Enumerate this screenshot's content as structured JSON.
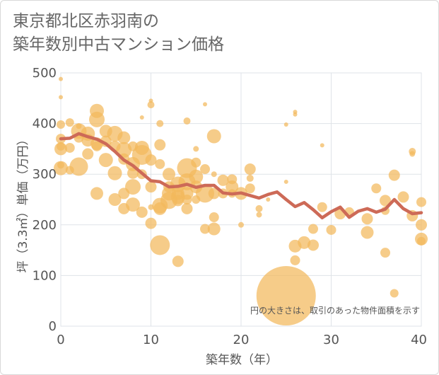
{
  "title_lines": [
    "東京都北区赤羽南の",
    "築年数別中古マンション価格"
  ],
  "note": "円の大きさは、取引のあった物件面積を示す",
  "colors": {
    "bubble": "#f3b95b",
    "line": "#cd6a57",
    "grid": "#dfe3e8"
  },
  "chart_data": {
    "type": "scatter",
    "xlabel": "築年数（年）",
    "ylabel": "坪（3.3㎡）単価（万円）",
    "xlim": [
      0,
      40
    ],
    "ylim": [
      0,
      500
    ],
    "x_ticks": [
      0,
      10,
      20,
      30,
      40
    ],
    "y_ticks": [
      0,
      100,
      200,
      300,
      400,
      500
    ],
    "grid": true,
    "scatter_points": [
      {
        "x": 0,
        "y": 488,
        "r": 3
      },
      {
        "x": 0,
        "y": 452,
        "r": 3
      },
      {
        "x": 0,
        "y": 398,
        "r": 6
      },
      {
        "x": 0,
        "y": 370,
        "r": 7
      },
      {
        "x": 0,
        "y": 355,
        "r": 6
      },
      {
        "x": 0,
        "y": 350,
        "r": 9
      },
      {
        "x": 0,
        "y": 312,
        "r": 10
      },
      {
        "x": 0,
        "y": 318,
        "r": 5
      },
      {
        "x": 1,
        "y": 402,
        "r": 6
      },
      {
        "x": 1,
        "y": 352,
        "r": 7
      },
      {
        "x": 1,
        "y": 308,
        "r": 6
      },
      {
        "x": 2,
        "y": 395,
        "r": 4
      },
      {
        "x": 2,
        "y": 385,
        "r": 11
      },
      {
        "x": 2,
        "y": 372,
        "r": 7
      },
      {
        "x": 2,
        "y": 315,
        "r": 13
      },
      {
        "x": 3,
        "y": 380,
        "r": 10
      },
      {
        "x": 3,
        "y": 367,
        "r": 9
      },
      {
        "x": 3,
        "y": 340,
        "r": 8
      },
      {
        "x": 4,
        "y": 425,
        "r": 10
      },
      {
        "x": 4,
        "y": 408,
        "r": 11
      },
      {
        "x": 4,
        "y": 360,
        "r": 9
      },
      {
        "x": 4,
        "y": 355,
        "r": 7
      },
      {
        "x": 4,
        "y": 262,
        "r": 9
      },
      {
        "x": 5,
        "y": 385,
        "r": 9
      },
      {
        "x": 5,
        "y": 365,
        "r": 8
      },
      {
        "x": 5,
        "y": 328,
        "r": 10
      },
      {
        "x": 6,
        "y": 380,
        "r": 11
      },
      {
        "x": 6,
        "y": 355,
        "r": 8
      },
      {
        "x": 6,
        "y": 302,
        "r": 10
      },
      {
        "x": 6,
        "y": 250,
        "r": 9
      },
      {
        "x": 7,
        "y": 372,
        "r": 9
      },
      {
        "x": 7,
        "y": 348,
        "r": 11
      },
      {
        "x": 7,
        "y": 330,
        "r": 8
      },
      {
        "x": 7,
        "y": 262,
        "r": 8
      },
      {
        "x": 7,
        "y": 232,
        "r": 8
      },
      {
        "x": 8,
        "y": 355,
        "r": 7
      },
      {
        "x": 8,
        "y": 320,
        "r": 10
      },
      {
        "x": 8,
        "y": 302,
        "r": 8
      },
      {
        "x": 8,
        "y": 275,
        "r": 11
      },
      {
        "x": 8,
        "y": 240,
        "r": 10
      },
      {
        "x": 9,
        "y": 412,
        "r": 3
      },
      {
        "x": 9,
        "y": 352,
        "r": 10
      },
      {
        "x": 9,
        "y": 338,
        "r": 14
      },
      {
        "x": 9,
        "y": 300,
        "r": 7
      },
      {
        "x": 9,
        "y": 225,
        "r": 8
      },
      {
        "x": 10,
        "y": 445,
        "r": 3
      },
      {
        "x": 10,
        "y": 437,
        "r": 5
      },
      {
        "x": 10,
        "y": 328,
        "r": 8
      },
      {
        "x": 10,
        "y": 275,
        "r": 8
      },
      {
        "x": 10,
        "y": 235,
        "r": 4
      },
      {
        "x": 10,
        "y": 203,
        "r": 8
      },
      {
        "x": 11,
        "y": 400,
        "r": 5
      },
      {
        "x": 11,
        "y": 358,
        "r": 8
      },
      {
        "x": 11,
        "y": 320,
        "r": 7
      },
      {
        "x": 11,
        "y": 232,
        "r": 9
      },
      {
        "x": 11,
        "y": 238,
        "r": 11
      },
      {
        "x": 11,
        "y": 160,
        "r": 14
      },
      {
        "x": 12,
        "y": 300,
        "r": 9
      },
      {
        "x": 12,
        "y": 275,
        "r": 8
      },
      {
        "x": 12,
        "y": 262,
        "r": 10
      },
      {
        "x": 12,
        "y": 248,
        "r": 12
      },
      {
        "x": 13,
        "y": 280,
        "r": 11
      },
      {
        "x": 13,
        "y": 262,
        "r": 9
      },
      {
        "x": 13,
        "y": 255,
        "r": 10
      },
      {
        "x": 13,
        "y": 248,
        "r": 8
      },
      {
        "x": 13,
        "y": 128,
        "r": 8
      },
      {
        "x": 14,
        "y": 405,
        "r": 5
      },
      {
        "x": 14,
        "y": 312,
        "r": 14
      },
      {
        "x": 14,
        "y": 285,
        "r": 12
      },
      {
        "x": 14,
        "y": 262,
        "r": 9
      },
      {
        "x": 14,
        "y": 250,
        "r": 7
      },
      {
        "x": 14,
        "y": 232,
        "r": 8
      },
      {
        "x": 15,
        "y": 350,
        "r": 4
      },
      {
        "x": 15,
        "y": 323,
        "r": 7
      },
      {
        "x": 15,
        "y": 295,
        "r": 10
      },
      {
        "x": 15,
        "y": 275,
        "r": 9
      },
      {
        "x": 15,
        "y": 250,
        "r": 6
      },
      {
        "x": 16,
        "y": 438,
        "r": 3
      },
      {
        "x": 16,
        "y": 310,
        "r": 7
      },
      {
        "x": 16,
        "y": 262,
        "r": 13
      },
      {
        "x": 16,
        "y": 192,
        "r": 7
      },
      {
        "x": 17,
        "y": 375,
        "r": 10
      },
      {
        "x": 17,
        "y": 300,
        "r": 4
      },
      {
        "x": 17,
        "y": 262,
        "r": 8
      },
      {
        "x": 17,
        "y": 215,
        "r": 7
      },
      {
        "x": 17,
        "y": 192,
        "r": 9
      },
      {
        "x": 18,
        "y": 288,
        "r": 8
      },
      {
        "x": 18,
        "y": 262,
        "r": 7
      },
      {
        "x": 19,
        "y": 290,
        "r": 7
      },
      {
        "x": 19,
        "y": 275,
        "r": 9
      },
      {
        "x": 19,
        "y": 262,
        "r": 6
      },
      {
        "x": 20,
        "y": 262,
        "r": 9
      },
      {
        "x": 20,
        "y": 200,
        "r": 4
      },
      {
        "x": 21,
        "y": 310,
        "r": 8
      },
      {
        "x": 21,
        "y": 292,
        "r": 5
      },
      {
        "x": 21,
        "y": 272,
        "r": 7
      },
      {
        "x": 22,
        "y": 232,
        "r": 5
      },
      {
        "x": 22,
        "y": 220,
        "r": 4
      },
      {
        "x": 23,
        "y": 250,
        "r": 3
      },
      {
        "x": 25,
        "y": 398,
        "r": 3
      },
      {
        "x": 25,
        "y": 285,
        "r": 3
      },
      {
        "x": 25,
        "y": 60,
        "r": 42
      },
      {
        "x": 26,
        "y": 423,
        "r": 3
      },
      {
        "x": 26,
        "y": 418,
        "r": 3
      },
      {
        "x": 26,
        "y": 158,
        "r": 9
      },
      {
        "x": 26,
        "y": 130,
        "r": 7
      },
      {
        "x": 27,
        "y": 165,
        "r": 9
      },
      {
        "x": 28,
        "y": 192,
        "r": 7
      },
      {
        "x": 28,
        "y": 160,
        "r": 8
      },
      {
        "x": 29,
        "y": 357,
        "r": 3
      },
      {
        "x": 29,
        "y": 235,
        "r": 7
      },
      {
        "x": 30,
        "y": 190,
        "r": 7
      },
      {
        "x": 31,
        "y": 222,
        "r": 8
      },
      {
        "x": 32,
        "y": 225,
        "r": 7
      },
      {
        "x": 34,
        "y": 212,
        "r": 8
      },
      {
        "x": 34,
        "y": 185,
        "r": 9
      },
      {
        "x": 35,
        "y": 272,
        "r": 7
      },
      {
        "x": 36,
        "y": 248,
        "r": 8
      },
      {
        "x": 36,
        "y": 228,
        "r": 6
      },
      {
        "x": 36,
        "y": 145,
        "r": 7
      },
      {
        "x": 37,
        "y": 298,
        "r": 8
      },
      {
        "x": 37,
        "y": 65,
        "r": 6
      },
      {
        "x": 38,
        "y": 255,
        "r": 8
      },
      {
        "x": 39,
        "y": 345,
        "r": 5
      },
      {
        "x": 39,
        "y": 340,
        "r": 4
      },
      {
        "x": 39,
        "y": 218,
        "r": 8
      },
      {
        "x": 40,
        "y": 245,
        "r": 7
      },
      {
        "x": 40,
        "y": 200,
        "r": 8
      },
      {
        "x": 40,
        "y": 172,
        "r": 9
      },
      {
        "x": 40,
        "y": 168,
        "r": 6
      }
    ],
    "trend_line": [
      {
        "x": 0,
        "y": 370
      },
      {
        "x": 1,
        "y": 371
      },
      {
        "x": 2,
        "y": 380
      },
      {
        "x": 3,
        "y": 374
      },
      {
        "x": 4,
        "y": 369
      },
      {
        "x": 5,
        "y": 360
      },
      {
        "x": 6,
        "y": 345
      },
      {
        "x": 7,
        "y": 328
      },
      {
        "x": 8,
        "y": 317
      },
      {
        "x": 9,
        "y": 302
      },
      {
        "x": 10,
        "y": 287
      },
      {
        "x": 11,
        "y": 285
      },
      {
        "x": 12,
        "y": 275
      },
      {
        "x": 13,
        "y": 276
      },
      {
        "x": 14,
        "y": 280
      },
      {
        "x": 15,
        "y": 274
      },
      {
        "x": 16,
        "y": 278
      },
      {
        "x": 17,
        "y": 278
      },
      {
        "x": 18,
        "y": 263
      },
      {
        "x": 19,
        "y": 261
      },
      {
        "x": 20,
        "y": 263
      },
      {
        "x": 21,
        "y": 258
      },
      {
        "x": 22,
        "y": 253
      },
      {
        "x": 23,
        "y": 260
      },
      {
        "x": 24,
        "y": 265
      },
      {
        "x": 25,
        "y": 250
      },
      {
        "x": 26,
        "y": 236
      },
      {
        "x": 27,
        "y": 244
      },
      {
        "x": 28,
        "y": 230
      },
      {
        "x": 29,
        "y": 214
      },
      {
        "x": 30,
        "y": 226
      },
      {
        "x": 31,
        "y": 235
      },
      {
        "x": 32,
        "y": 215
      },
      {
        "x": 33,
        "y": 227
      },
      {
        "x": 34,
        "y": 232
      },
      {
        "x": 35,
        "y": 225
      },
      {
        "x": 36,
        "y": 231
      },
      {
        "x": 37,
        "y": 250
      },
      {
        "x": 38,
        "y": 232
      },
      {
        "x": 39,
        "y": 222
      },
      {
        "x": 40,
        "y": 224
      }
    ]
  }
}
